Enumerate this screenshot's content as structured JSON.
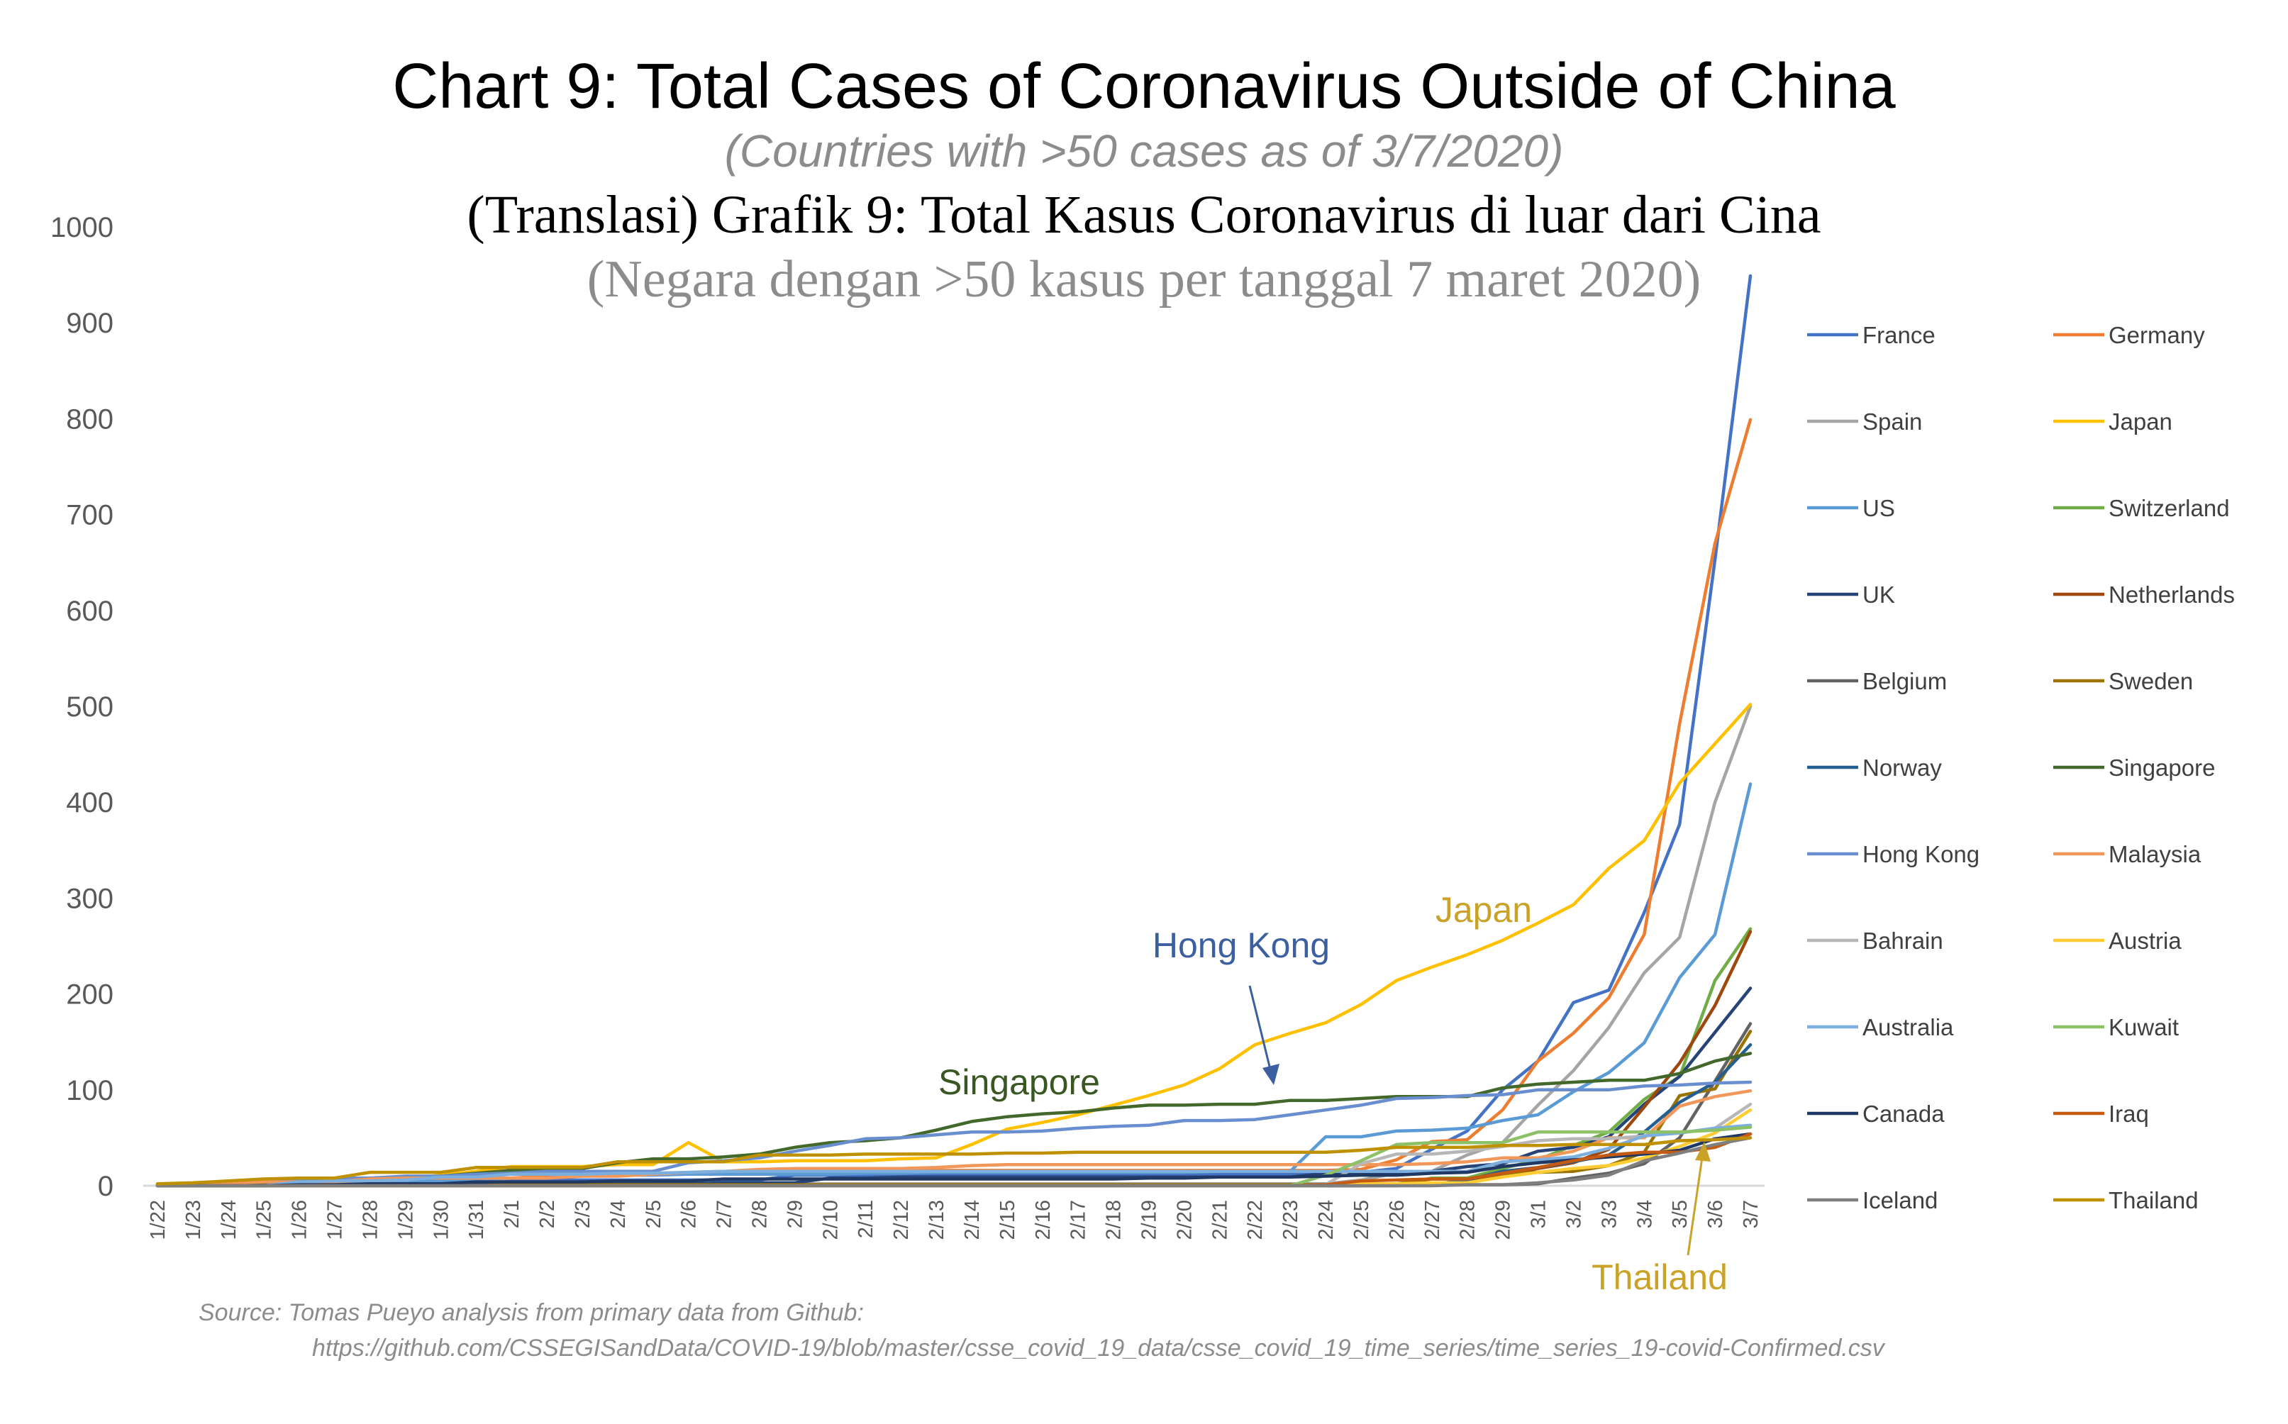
{
  "chart_data": {
    "type": "line",
    "title": "Chart 9: Total Cases of Coronavirus Outside of China",
    "subtitle": "(Countries with >50 cases as of 3/7/2020)",
    "translated_title": "(Translasi) Grafik 9: Total Kasus Coronavirus di luar dari Cina",
    "translated_subtitle": "(Negara dengan >50 kasus per tanggal 7 maret 2020)",
    "xlabel": "",
    "ylabel": "",
    "ylim": [
      0,
      1000
    ],
    "yticks": [
      0,
      100,
      200,
      300,
      400,
      500,
      600,
      700,
      800,
      900,
      1000
    ],
    "grid": false,
    "legend_position": "right",
    "x": [
      "1/22",
      "1/23",
      "1/24",
      "1/25",
      "1/26",
      "1/27",
      "1/28",
      "1/29",
      "1/30",
      "1/31",
      "2/1",
      "2/2",
      "2/3",
      "2/4",
      "2/5",
      "2/6",
      "2/7",
      "2/8",
      "2/9",
      "2/10",
      "2/11",
      "2/12",
      "2/13",
      "2/14",
      "2/15",
      "2/16",
      "2/17",
      "2/18",
      "2/19",
      "2/20",
      "2/21",
      "2/22",
      "2/23",
      "2/24",
      "2/25",
      "2/26",
      "2/27",
      "2/28",
      "2/29",
      "3/1",
      "3/2",
      "3/3",
      "3/4",
      "3/5",
      "3/6",
      "3/7"
    ],
    "series": [
      {
        "name": "France",
        "color": "#4472c4",
        "values": [
          0,
          2,
          3,
          3,
          3,
          4,
          5,
          5,
          5,
          6,
          6,
          6,
          6,
          6,
          6,
          6,
          6,
          6,
          11,
          11,
          11,
          11,
          11,
          11,
          12,
          12,
          12,
          12,
          12,
          12,
          12,
          12,
          12,
          12,
          14,
          18,
          38,
          57,
          100,
          130,
          191,
          204,
          285,
          377,
          653,
          949
        ]
      },
      {
        "name": "Germany",
        "color": "#ed7d31",
        "values": [
          0,
          0,
          0,
          0,
          0,
          1,
          4,
          4,
          4,
          5,
          8,
          10,
          12,
          12,
          12,
          12,
          13,
          13,
          14,
          14,
          16,
          16,
          16,
          16,
          16,
          16,
          16,
          16,
          16,
          16,
          16,
          16,
          16,
          16,
          17,
          27,
          46,
          48,
          79,
          130,
          159,
          196,
          262,
          482,
          670,
          799
        ]
      },
      {
        "name": "Spain",
        "color": "#a5a5a5",
        "values": [
          0,
          0,
          0,
          0,
          0,
          0,
          0,
          0,
          0,
          0,
          1,
          1,
          1,
          1,
          1,
          1,
          1,
          1,
          2,
          2,
          2,
          2,
          2,
          2,
          2,
          2,
          2,
          2,
          2,
          2,
          2,
          2,
          2,
          2,
          6,
          13,
          15,
          32,
          45,
          84,
          120,
          165,
          222,
          259,
          400,
          500
        ]
      },
      {
        "name": "Japan",
        "color": "#ffc000",
        "values": [
          2,
          1,
          2,
          2,
          4,
          4,
          7,
          7,
          11,
          15,
          20,
          20,
          20,
          22,
          22,
          45,
          25,
          25,
          26,
          26,
          26,
          28,
          29,
          43,
          59,
          66,
          74,
          84,
          94,
          105,
          122,
          147,
          159,
          170,
          189,
          214,
          228,
          241,
          256,
          274,
          293,
          331,
          360,
          420,
          461,
          502
        ]
      },
      {
        "name": "US",
        "color": "#5b9bd5",
        "values": [
          1,
          1,
          2,
          2,
          5,
          5,
          5,
          5,
          5,
          6,
          8,
          8,
          11,
          11,
          11,
          12,
          12,
          12,
          12,
          12,
          13,
          13,
          14,
          14,
          14,
          14,
          14,
          14,
          14,
          14,
          15,
          15,
          15,
          51,
          51,
          57,
          58,
          60,
          68,
          74,
          98,
          118,
          149,
          217,
          262,
          419
        ]
      },
      {
        "name": "Switzerland",
        "color": "#70ad47",
        "values": [
          0,
          0,
          0,
          0,
          0,
          0,
          0,
          0,
          0,
          0,
          0,
          0,
          0,
          0,
          0,
          0,
          0,
          0,
          0,
          0,
          0,
          0,
          0,
          0,
          0,
          0,
          0,
          0,
          0,
          0,
          0,
          0,
          0,
          0,
          1,
          1,
          8,
          8,
          18,
          27,
          42,
          56,
          90,
          114,
          214,
          268
        ]
      },
      {
        "name": "UK",
        "color": "#264478",
        "values": [
          0,
          0,
          0,
          0,
          0,
          0,
          0,
          0,
          0,
          2,
          2,
          2,
          2,
          2,
          2,
          2,
          3,
          3,
          3,
          8,
          8,
          9,
          9,
          9,
          9,
          9,
          9,
          9,
          9,
          9,
          9,
          9,
          9,
          13,
          13,
          13,
          15,
          20,
          23,
          36,
          40,
          51,
          85,
          114,
          160,
          206
        ]
      },
      {
        "name": "Netherlands",
        "color": "#9e480e",
        "values": [
          0,
          0,
          0,
          0,
          0,
          0,
          0,
          0,
          0,
          0,
          0,
          0,
          0,
          0,
          0,
          0,
          0,
          0,
          0,
          0,
          0,
          0,
          0,
          0,
          0,
          0,
          0,
          0,
          0,
          0,
          0,
          0,
          0,
          0,
          0,
          0,
          1,
          6,
          10,
          18,
          24,
          38,
          82,
          128,
          188,
          265
        ]
      },
      {
        "name": "Belgium",
        "color": "#636363",
        "values": [
          0,
          0,
          0,
          0,
          0,
          0,
          0,
          0,
          0,
          0,
          0,
          0,
          0,
          0,
          1,
          1,
          1,
          1,
          1,
          1,
          1,
          1,
          1,
          1,
          1,
          1,
          1,
          1,
          1,
          1,
          1,
          1,
          1,
          1,
          1,
          1,
          1,
          1,
          1,
          2,
          8,
          13,
          23,
          50,
          109,
          169
        ]
      },
      {
        "name": "Sweden",
        "color": "#997300",
        "values": [
          0,
          0,
          0,
          0,
          0,
          0,
          0,
          0,
          0,
          0,
          1,
          1,
          1,
          1,
          1,
          1,
          1,
          1,
          1,
          1,
          1,
          1,
          1,
          1,
          1,
          1,
          1,
          1,
          1,
          1,
          1,
          1,
          1,
          1,
          1,
          2,
          7,
          7,
          12,
          14,
          15,
          21,
          35,
          94,
          101,
          161
        ]
      },
      {
        "name": "Norway",
        "color": "#255e91",
        "values": [
          0,
          0,
          0,
          0,
          0,
          0,
          0,
          0,
          0,
          0,
          0,
          0,
          0,
          0,
          0,
          0,
          0,
          0,
          0,
          0,
          0,
          0,
          0,
          0,
          0,
          0,
          0,
          0,
          0,
          0,
          0,
          0,
          0,
          0,
          0,
          1,
          1,
          6,
          15,
          19,
          25,
          32,
          56,
          87,
          108,
          147
        ]
      },
      {
        "name": "Singapore",
        "color": "#43682b",
        "values": [
          0,
          1,
          3,
          3,
          4,
          5,
          7,
          7,
          10,
          13,
          16,
          18,
          18,
          24,
          28,
          28,
          30,
          33,
          40,
          45,
          47,
          50,
          58,
          67,
          72,
          75,
          77,
          81,
          84,
          84,
          85,
          85,
          89,
          89,
          91,
          93,
          93,
          93,
          102,
          106,
          108,
          110,
          110,
          117,
          130,
          138
        ]
      },
      {
        "name": "Hong Kong",
        "color": "#698ed0",
        "values": [
          0,
          2,
          2,
          5,
          8,
          8,
          8,
          10,
          10,
          12,
          13,
          15,
          15,
          15,
          15,
          24,
          26,
          29,
          36,
          42,
          49,
          50,
          53,
          56,
          56,
          57,
          60,
          62,
          63,
          68,
          68,
          69,
          74,
          79,
          84,
          91,
          92,
          94,
          95,
          100,
          100,
          100,
          104,
          105,
          107,
          108
        ]
      },
      {
        "name": "Malaysia",
        "color": "#f1975a",
        "values": [
          0,
          0,
          3,
          4,
          4,
          4,
          7,
          8,
          8,
          8,
          8,
          8,
          10,
          10,
          12,
          14,
          15,
          17,
          18,
          18,
          18,
          18,
          19,
          21,
          22,
          22,
          22,
          22,
          22,
          22,
          22,
          22,
          22,
          22,
          22,
          22,
          23,
          25,
          29,
          29,
          36,
          50,
          50,
          83,
          93,
          99
        ]
      },
      {
        "name": "Bahrain",
        "color": "#b7b7b7",
        "values": [
          0,
          0,
          0,
          0,
          0,
          0,
          0,
          0,
          0,
          0,
          0,
          0,
          0,
          0,
          0,
          0,
          0,
          0,
          0,
          0,
          0,
          0,
          0,
          0,
          0,
          0,
          0,
          0,
          0,
          0,
          0,
          0,
          0,
          1,
          23,
          33,
          33,
          36,
          41,
          47,
          49,
          49,
          52,
          55,
          60,
          85
        ]
      },
      {
        "name": "Austria",
        "color": "#ffcd33",
        "values": [
          0,
          0,
          0,
          0,
          0,
          0,
          0,
          0,
          0,
          0,
          0,
          0,
          0,
          0,
          0,
          0,
          0,
          0,
          0,
          0,
          0,
          0,
          0,
          0,
          0,
          0,
          0,
          0,
          0,
          0,
          0,
          0,
          0,
          0,
          2,
          2,
          3,
          3,
          9,
          14,
          18,
          21,
          29,
          41,
          55,
          79
        ]
      },
      {
        "name": "Australia",
        "color": "#7cafdd",
        "values": [
          0,
          0,
          0,
          0,
          4,
          5,
          5,
          6,
          9,
          9,
          12,
          12,
          12,
          13,
          13,
          14,
          15,
          15,
          15,
          15,
          15,
          15,
          15,
          15,
          15,
          15,
          15,
          15,
          15,
          15,
          15,
          15,
          15,
          15,
          15,
          15,
          15,
          15,
          25,
          27,
          30,
          39,
          52,
          55,
          60,
          63
        ]
      },
      {
        "name": "Kuwait",
        "color": "#8cc168",
        "values": [
          0,
          0,
          0,
          0,
          0,
          0,
          0,
          0,
          0,
          0,
          0,
          0,
          0,
          0,
          0,
          0,
          0,
          0,
          0,
          0,
          0,
          0,
          0,
          0,
          0,
          0,
          0,
          0,
          0,
          0,
          0,
          0,
          0,
          11,
          26,
          43,
          45,
          45,
          45,
          56,
          56,
          56,
          56,
          56,
          58,
          61
        ]
      },
      {
        "name": "Canada",
        "color": "#203864",
        "values": [
          0,
          0,
          0,
          0,
          1,
          1,
          2,
          2,
          2,
          4,
          4,
          4,
          4,
          5,
          5,
          5,
          7,
          7,
          7,
          7,
          7,
          7,
          7,
          7,
          7,
          7,
          7,
          7,
          8,
          8,
          9,
          9,
          9,
          10,
          11,
          11,
          13,
          14,
          20,
          24,
          27,
          30,
          33,
          37,
          49,
          54
        ]
      },
      {
        "name": "Iraq",
        "color": "#c55a11",
        "values": [
          0,
          0,
          0,
          0,
          0,
          0,
          0,
          0,
          0,
          0,
          0,
          0,
          0,
          0,
          0,
          0,
          0,
          0,
          0,
          0,
          0,
          0,
          0,
          0,
          0,
          0,
          0,
          0,
          0,
          0,
          0,
          0,
          0,
          1,
          5,
          6,
          7,
          7,
          13,
          19,
          26,
          32,
          35,
          35,
          40,
          54
        ]
      },
      {
        "name": "Iceland",
        "color": "#7f7f7f",
        "values": [
          0,
          0,
          0,
          0,
          0,
          0,
          0,
          0,
          0,
          0,
          0,
          0,
          0,
          0,
          0,
          0,
          0,
          0,
          0,
          0,
          0,
          0,
          0,
          0,
          0,
          0,
          0,
          0,
          0,
          0,
          0,
          0,
          0,
          0,
          0,
          0,
          0,
          1,
          1,
          3,
          6,
          11,
          26,
          34,
          43,
          50
        ]
      },
      {
        "name": "Thailand",
        "color": "#bf9000",
        "values": [
          2,
          3,
          5,
          7,
          8,
          8,
          14,
          14,
          14,
          19,
          19,
          19,
          19,
          25,
          25,
          25,
          25,
          32,
          32,
          32,
          33,
          33,
          33,
          33,
          34,
          34,
          35,
          35,
          35,
          35,
          35,
          35,
          35,
          35,
          37,
          40,
          40,
          40,
          42,
          42,
          43,
          43,
          43,
          47,
          48,
          50
        ]
      }
    ],
    "annotations": [
      {
        "text": "Japan",
        "color": "#c9a227"
      },
      {
        "text": "Hong Kong",
        "color": "#3c5fa0"
      },
      {
        "text": "Singapore",
        "color": "#385723"
      },
      {
        "text": "Thailand",
        "color": "#c9a227"
      }
    ],
    "source_line1": "Source: Tomas Pueyo analysis from primary data from Github:",
    "source_line2": "https://github.com/CSSEGISandData/COVID-19/blob/master/csse_covid_19_data/csse_covid_19_time_series/time_series_19-covid-Confirmed.csv"
  }
}
